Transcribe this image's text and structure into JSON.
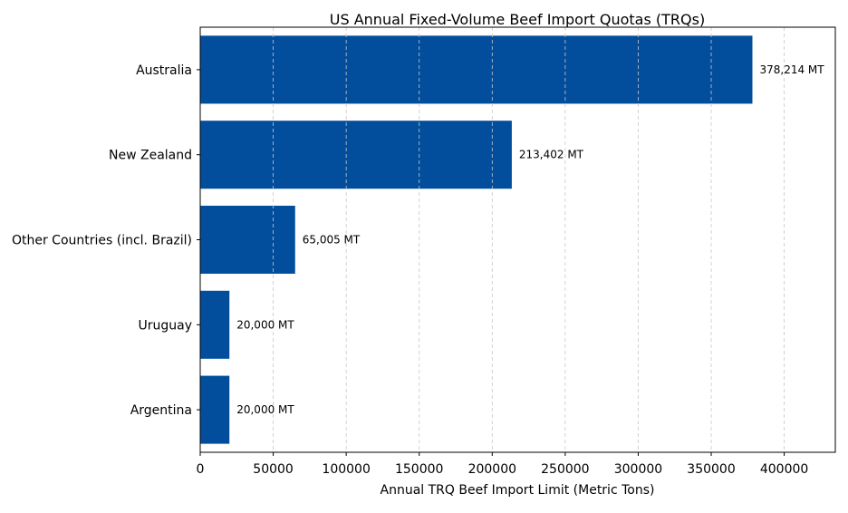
{
  "chart_data": {
    "type": "bar",
    "orientation": "horizontal",
    "title": "US Annual Fixed-Volume Beef Import Quotas (TRQs)",
    "xlabel": "Annual TRQ Beef Import Limit (Metric Tons)",
    "ylabel": "",
    "categories": [
      "Australia",
      "New Zealand",
      "Other Countries (incl. Brazil)",
      "Uruguay",
      "Argentina"
    ],
    "values": [
      378214,
      213402,
      65005,
      20000,
      20000
    ],
    "data_labels": [
      "378,214 MT",
      "213,402 MT",
      "65,005 MT",
      "20,000 MT",
      "20,000 MT"
    ],
    "xlim": [
      0,
      435000
    ],
    "xticks": [
      0,
      50000,
      100000,
      150000,
      200000,
      250000,
      300000,
      350000,
      400000
    ],
    "xtick_labels": [
      "0",
      "50000",
      "100000",
      "150000",
      "200000",
      "250000",
      "300000",
      "350000",
      "400000"
    ],
    "grid": "x, dashed",
    "bar_color": "#034e9c",
    "grid_color": "#c8c8c8"
  }
}
